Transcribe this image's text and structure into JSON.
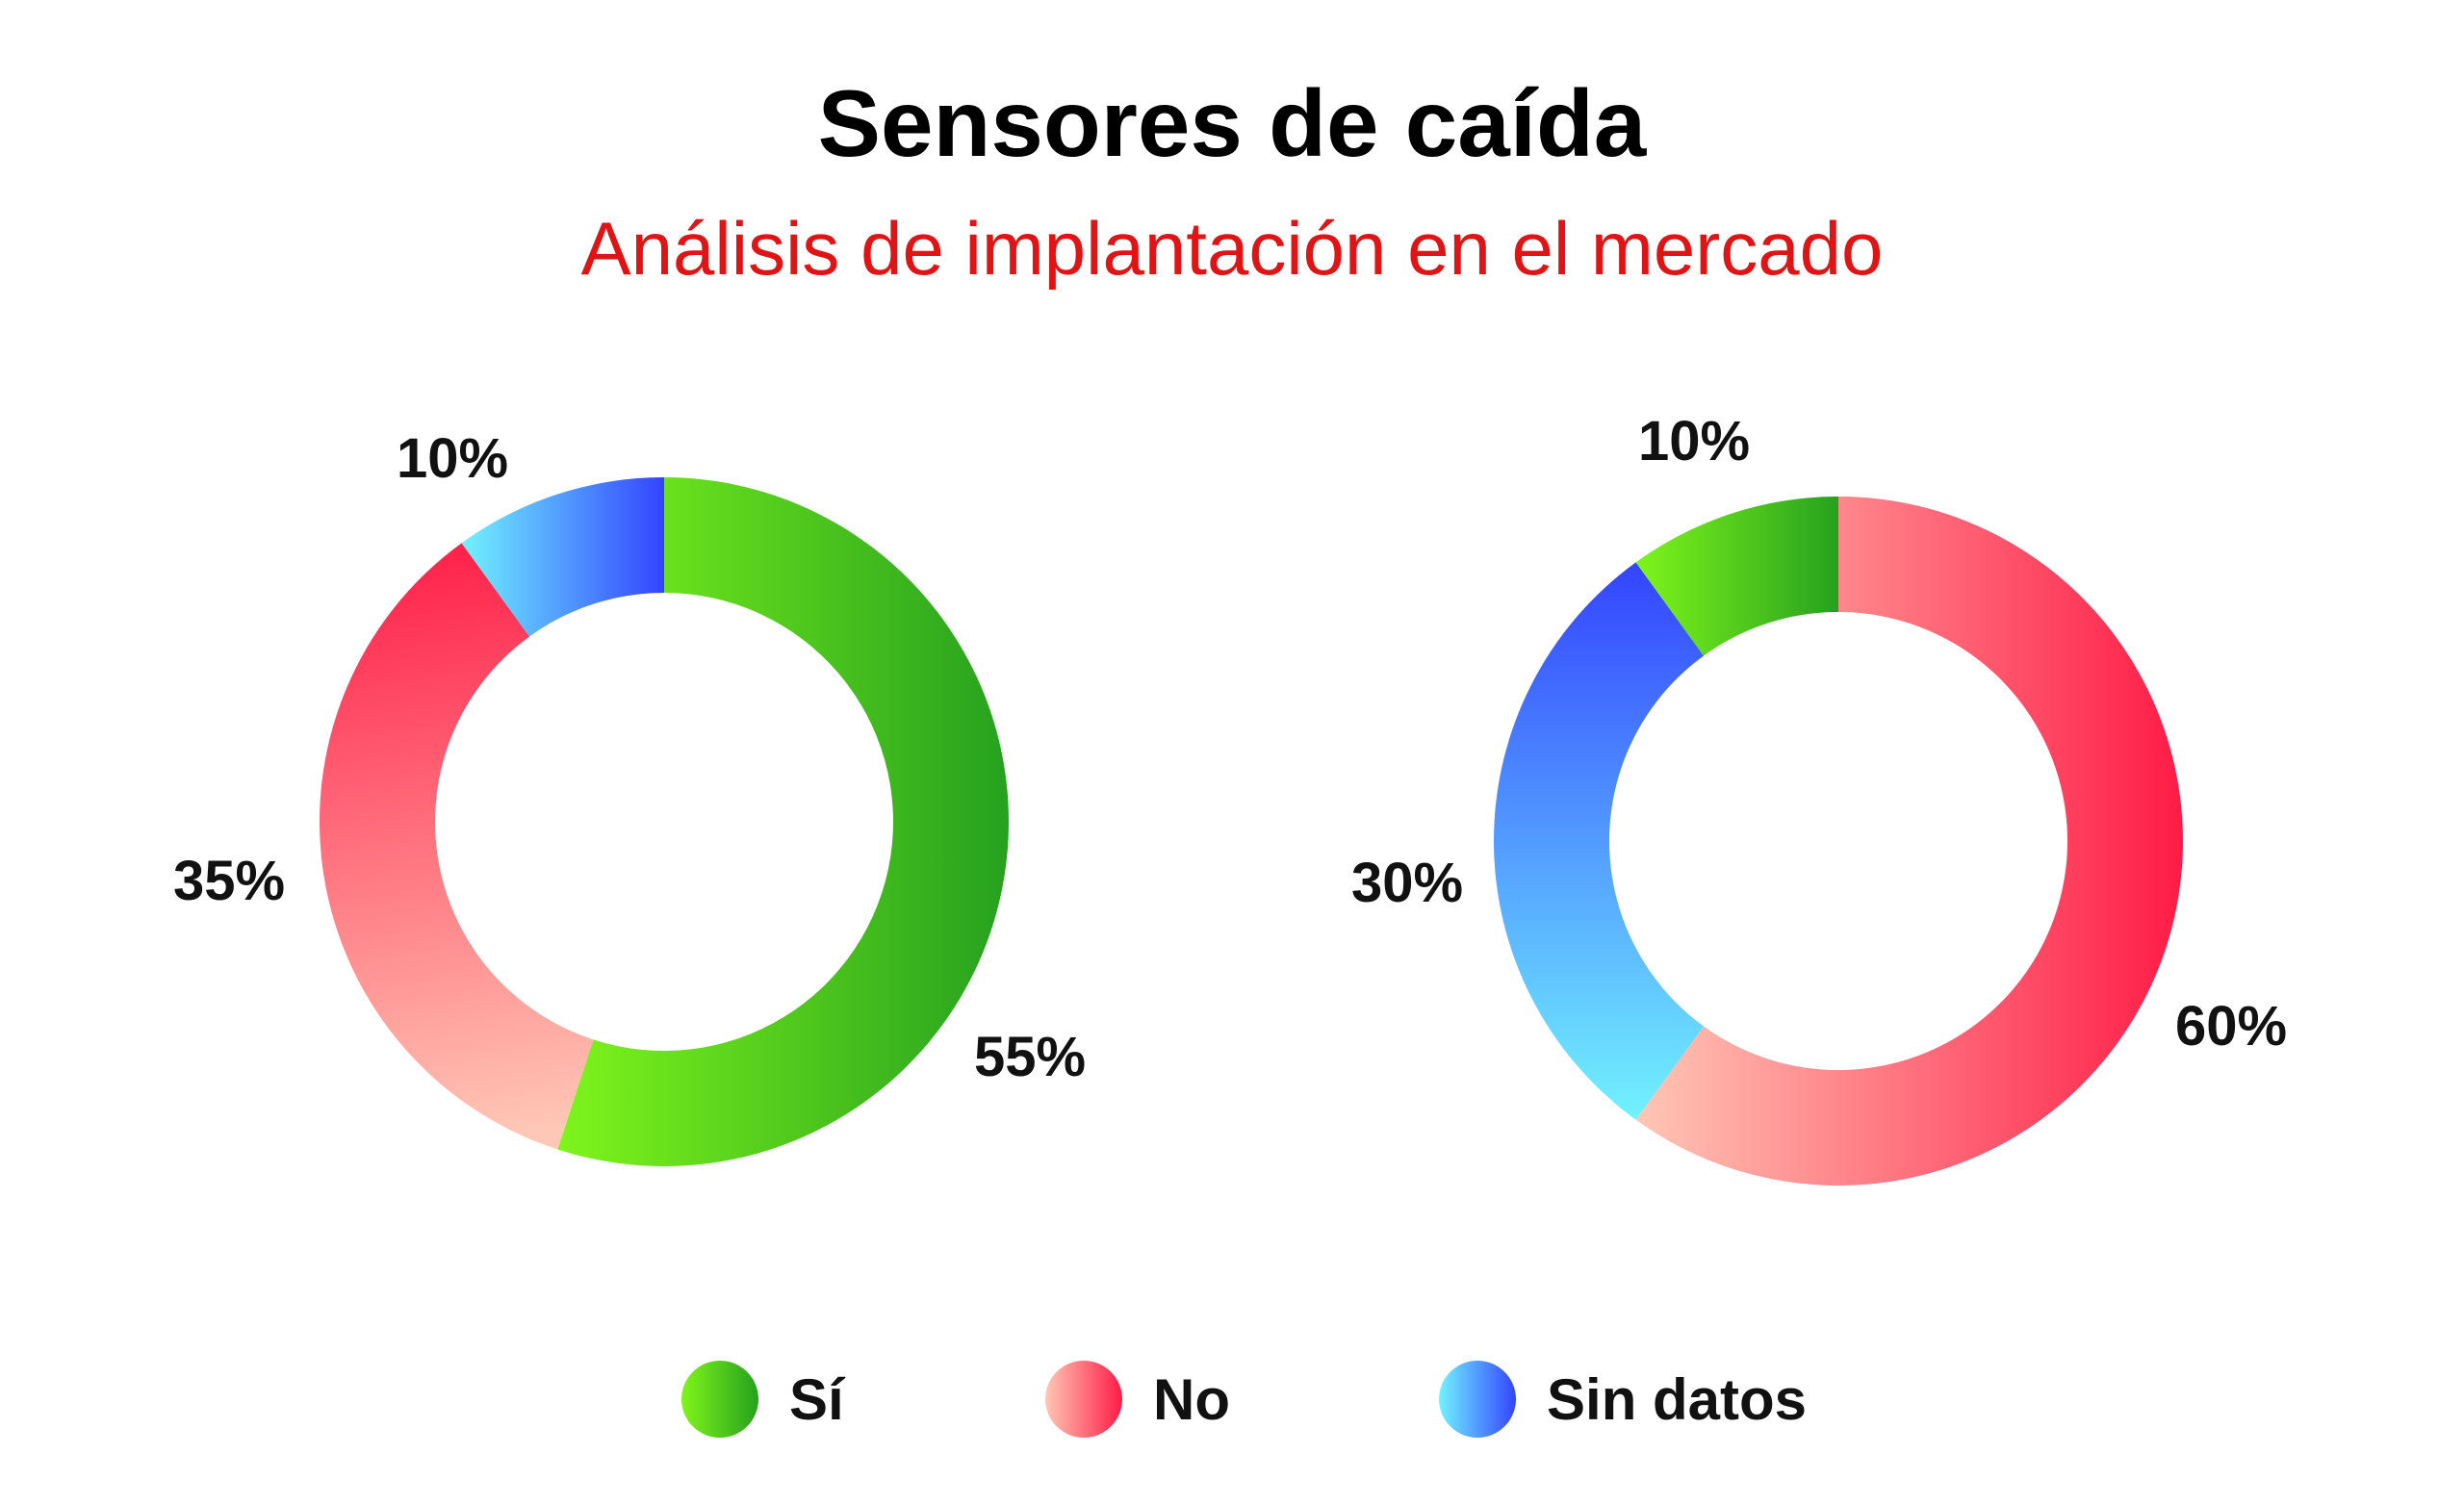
{
  "title": "Sensores de caída",
  "subtitle": "Análisis de implantación en el mercado",
  "colors": {
    "subtitle": "#e01414",
    "si": [
      "#7ff51c",
      "#26a11e"
    ],
    "no": [
      "#ffc7b5",
      "#ff1b46"
    ],
    "sin_datos": [
      "#72f2ff",
      "#3344ff"
    ]
  },
  "legend": [
    {
      "key": "si",
      "label": "Sí"
    },
    {
      "key": "no",
      "label": "No"
    },
    {
      "key": "sin_datos",
      "label": "Sin datos"
    }
  ],
  "chart_data": [
    {
      "type": "pie",
      "donut": true,
      "slices": [
        {
          "category": "Sí",
          "key": "si",
          "value": 55,
          "label": "55%"
        },
        {
          "category": "No",
          "key": "no",
          "value": 35,
          "label": "35%"
        },
        {
          "category": "Sin datos",
          "key": "sin_datos",
          "value": 10,
          "label": "10%"
        }
      ]
    },
    {
      "type": "pie",
      "donut": true,
      "slices": [
        {
          "category": "No",
          "key": "no",
          "value": 60,
          "label": "60%"
        },
        {
          "category": "Sin datos",
          "key": "sin_datos",
          "value": 30,
          "label": "30%"
        },
        {
          "category": "Sí",
          "key": "si",
          "value": 10,
          "label": "10%"
        }
      ]
    }
  ]
}
